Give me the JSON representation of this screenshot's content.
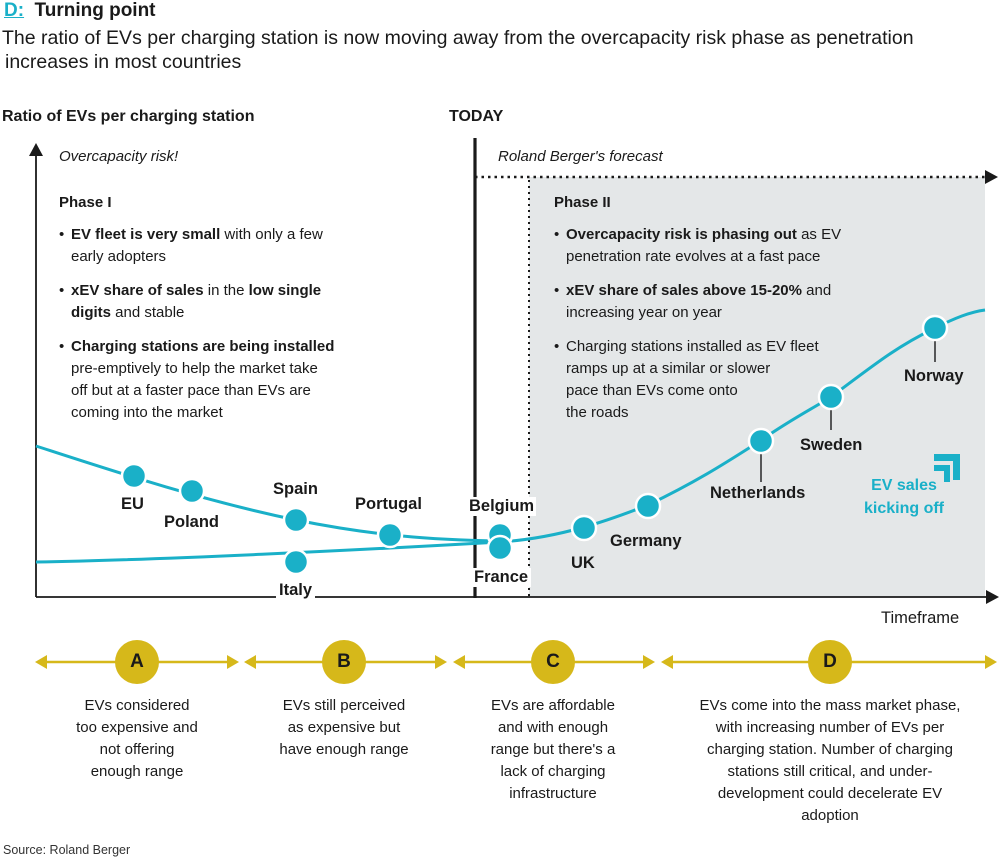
{
  "header": {
    "letter": "D:",
    "title": "Turning point",
    "subtitle_line1": "The ratio of EVs per charging station is now moving away from the overcapacity risk phase as penetration",
    "subtitle_line2": "increases in most countries"
  },
  "chart": {
    "y_axis_title": "Ratio of EVs per charging station",
    "today_label": "TODAY",
    "overcapacity_label": "Overcapacity risk!",
    "forecast_label": "Roland Berger's forecast",
    "x_axis_label": "Timeframe"
  },
  "phase1": {
    "title": "Phase I",
    "bullets": [
      {
        "bold": "EV fleet is very small",
        "rest_line1": " with only a few",
        "line2": "early adopters",
        "line3": ""
      },
      {
        "bold": "xEV share of sales",
        "mid": " in the ",
        "bold2": "low single",
        "line2_bold": "digits",
        "line2_rest": " and stable"
      },
      {
        "bold": "Charging stations are being installed",
        "line2": "pre-emptively to help the market take",
        "line3": "off but at a faster pace than EVs are",
        "line4": "coming into the market"
      }
    ]
  },
  "phase2": {
    "title": "Phase II",
    "bullets": [
      {
        "bold": "Overcapacity risk is phasing out",
        "rest": " as EV",
        "line2": "penetration rate evolves at a fast pace"
      },
      {
        "bold": "xEV share of sales above 15-20%",
        "rest": " and",
        "line2": "increasing year on year"
      },
      {
        "line1": "Charging stations installed as EV fleet",
        "line2": "ramps up at a similar or slower",
        "line3": "pace than EVs come onto",
        "line4": "the roads"
      }
    ]
  },
  "countries": {
    "eu": "EU",
    "poland": "Poland",
    "spain": "Spain",
    "portugal": "Portugal",
    "belgium": "Belgium",
    "italy": "Italy",
    "france": "France",
    "uk": "UK",
    "germany": "Germany",
    "netherlands": "Netherlands",
    "sweden": "Sweden",
    "norway": "Norway"
  },
  "ev_sales": {
    "line1": "EV sales",
    "line2": "kicking off"
  },
  "stages": [
    {
      "letter": "A",
      "lines": [
        "EVs considered",
        "too expensive and",
        "not offering",
        "enough range"
      ]
    },
    {
      "letter": "B",
      "lines": [
        "EVs still perceived",
        "as expensive but",
        "have enough range"
      ]
    },
    {
      "letter": "C",
      "lines": [
        "EVs are affordable",
        "and with enough",
        "range but there's a",
        "lack of charging",
        "infrastructure"
      ]
    },
    {
      "letter": "D",
      "lines": [
        "EVs come into the mass market phase,",
        "with increasing number of EVs per",
        "charging station. Number of charging",
        "stations still critical, and under-",
        "development could decelerate EV",
        "adoption"
      ]
    }
  ],
  "source": "Source: Roland Berger",
  "colors": {
    "teal": "#1ab0c8",
    "gold": "#d6b81a",
    "forecast_bg": "#e4e7e8",
    "text": "#1a1a1a"
  }
}
